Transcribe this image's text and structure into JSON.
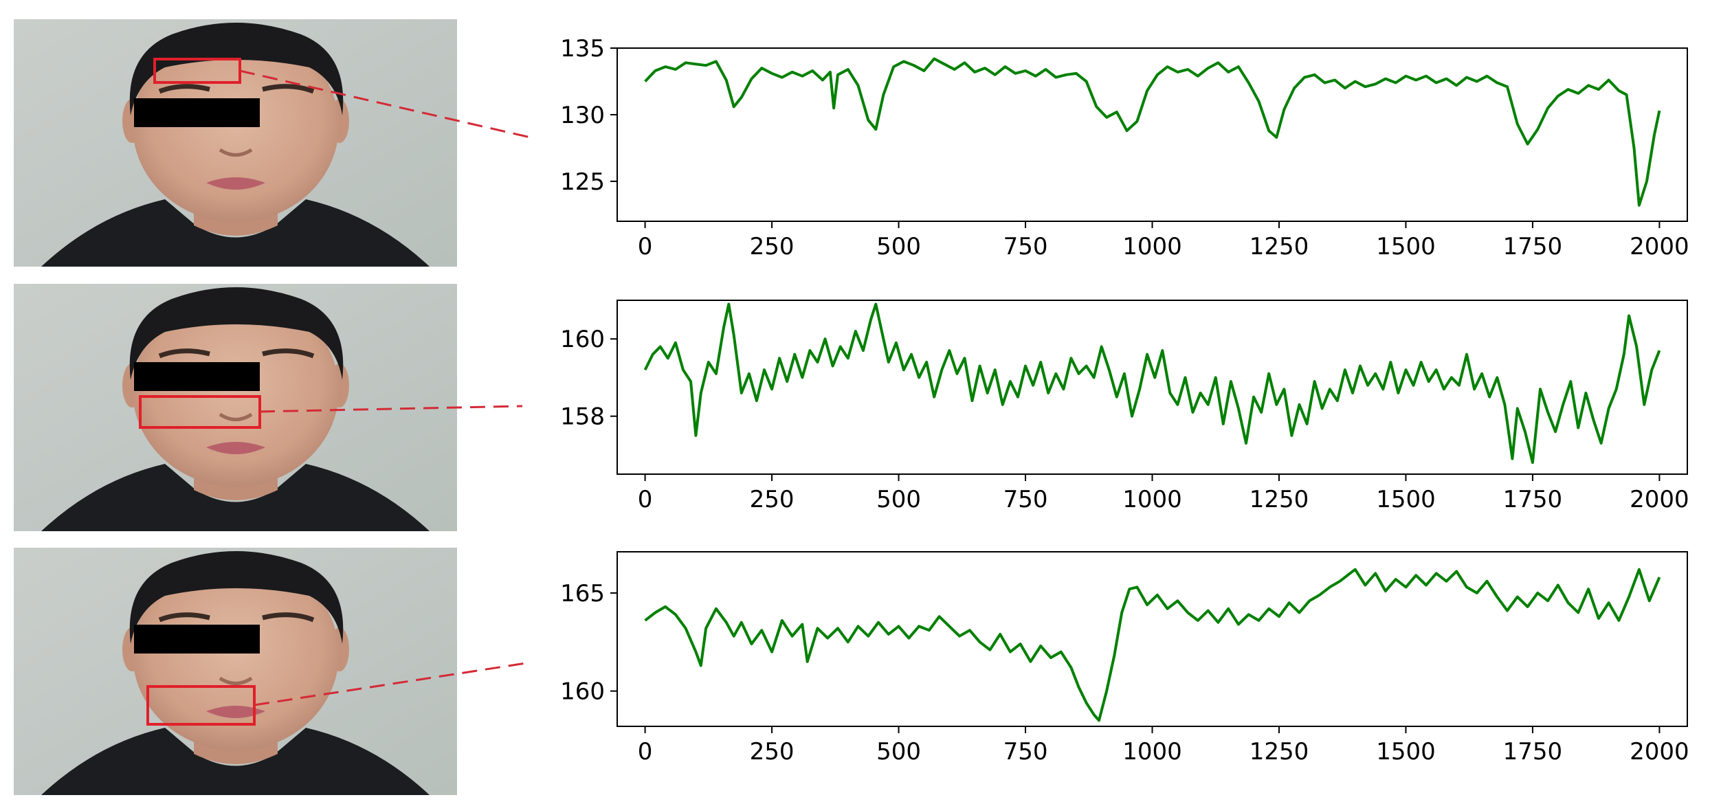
{
  "figure": {
    "panels": [
      {
        "roi": "forehead",
        "x_ticks": [
          "0",
          "250",
          "500",
          "750",
          "1000",
          "1250",
          "1500",
          "1750",
          "2000"
        ],
        "y_ticks": [
          "125",
          "130",
          "135"
        ]
      },
      {
        "roi": "nose-cheeks",
        "x_ticks": [
          "0",
          "250",
          "500",
          "750",
          "1000",
          "1250",
          "1500",
          "1750",
          "2000"
        ],
        "y_ticks": [
          "158",
          "160"
        ]
      },
      {
        "roi": "mouth",
        "x_ticks": [
          "0",
          "250",
          "500",
          "750",
          "1000",
          "1250",
          "1500",
          "1750",
          "2000"
        ],
        "y_ticks": [
          "160",
          "165"
        ]
      }
    ],
    "colors": {
      "line": "#008000",
      "roi_box": "#e0202a",
      "leader": "#d42a36",
      "mask": "#000000",
      "background_photo": "#c6ccc8"
    }
  },
  "chart_data": [
    {
      "type": "line",
      "title": "",
      "xlabel": "",
      "ylabel": "",
      "xlim": [
        -55,
        2055
      ],
      "ylim": [
        122,
        135
      ],
      "x_ticks": [
        0,
        250,
        500,
        750,
        1000,
        1250,
        1500,
        1750,
        2000
      ],
      "y_ticks": [
        125,
        130,
        135
      ],
      "grid": false,
      "series": [
        {
          "x": [
            0,
            20,
            40,
            60,
            80,
            100,
            120,
            140,
            160,
            175,
            190,
            210,
            230,
            250,
            270,
            290,
            310,
            330,
            350,
            365,
            372,
            380,
            400,
            420,
            440,
            455,
            470,
            490,
            510,
            530,
            550,
            570,
            590,
            610,
            630,
            650,
            670,
            690,
            710,
            730,
            750,
            770,
            790,
            810,
            830,
            850,
            870,
            890,
            910,
            930,
            950,
            970,
            990,
            1010,
            1030,
            1050,
            1070,
            1090,
            1110,
            1130,
            1150,
            1170,
            1190,
            1210,
            1230,
            1245,
            1260,
            1280,
            1300,
            1320,
            1340,
            1360,
            1380,
            1400,
            1420,
            1440,
            1460,
            1480,
            1500,
            1520,
            1540,
            1560,
            1580,
            1600,
            1620,
            1640,
            1660,
            1680,
            1700,
            1720,
            1740,
            1760,
            1780,
            1800,
            1820,
            1840,
            1860,
            1880,
            1900,
            1920,
            1935,
            1950,
            1960,
            1975,
            1990,
            2000
          ],
          "values": [
            132.5,
            133.3,
            133.6,
            133.4,
            133.9,
            133.8,
            133.7,
            134.0,
            132.6,
            130.6,
            131.3,
            132.7,
            133.5,
            133.1,
            132.8,
            133.2,
            132.9,
            133.3,
            132.6,
            133.2,
            130.5,
            133.0,
            133.4,
            132.2,
            129.6,
            128.9,
            131.5,
            133.6,
            134.0,
            133.7,
            133.3,
            134.2,
            133.8,
            133.4,
            133.9,
            133.2,
            133.5,
            133.0,
            133.6,
            133.1,
            133.3,
            132.9,
            133.4,
            132.8,
            133.0,
            133.1,
            132.5,
            130.6,
            129.8,
            130.2,
            128.8,
            129.5,
            131.8,
            133.0,
            133.6,
            133.2,
            133.4,
            132.9,
            133.5,
            133.9,
            133.2,
            133.6,
            132.4,
            131.0,
            128.8,
            128.3,
            130.4,
            132.0,
            132.8,
            133.0,
            132.4,
            132.6,
            132.0,
            132.5,
            132.1,
            132.3,
            132.7,
            132.4,
            132.9,
            132.6,
            132.9,
            132.4,
            132.7,
            132.2,
            132.8,
            132.5,
            132.9,
            132.4,
            132.1,
            129.3,
            127.8,
            128.9,
            130.5,
            131.4,
            131.9,
            131.6,
            132.2,
            131.9,
            132.6,
            131.8,
            131.5,
            127.5,
            123.2,
            125.0,
            128.5,
            130.3
          ]
        }
      ]
    },
    {
      "type": "line",
      "title": "",
      "xlabel": "",
      "ylabel": "",
      "xlim": [
        -55,
        2055
      ],
      "ylim": [
        156.5,
        161.0
      ],
      "x_ticks": [
        0,
        250,
        500,
        750,
        1000,
        1250,
        1500,
        1750,
        2000
      ],
      "y_ticks": [
        158,
        160
      ],
      "grid": false,
      "series": [
        {
          "x": [
            0,
            15,
            30,
            45,
            60,
            75,
            90,
            100,
            110,
            125,
            140,
            155,
            165,
            175,
            190,
            205,
            220,
            235,
            250,
            265,
            280,
            295,
            310,
            325,
            340,
            355,
            370,
            385,
            400,
            415,
            430,
            445,
            455,
            465,
            480,
            495,
            510,
            525,
            540,
            555,
            570,
            585,
            600,
            615,
            630,
            645,
            660,
            675,
            690,
            705,
            720,
            735,
            750,
            765,
            780,
            795,
            810,
            825,
            840,
            855,
            870,
            885,
            900,
            915,
            930,
            945,
            960,
            975,
            990,
            1005,
            1020,
            1035,
            1050,
            1065,
            1080,
            1095,
            1110,
            1125,
            1140,
            1155,
            1170,
            1185,
            1200,
            1215,
            1230,
            1245,
            1260,
            1275,
            1290,
            1305,
            1320,
            1335,
            1350,
            1365,
            1380,
            1395,
            1410,
            1425,
            1440,
            1455,
            1470,
            1485,
            1500,
            1515,
            1530,
            1545,
            1560,
            1575,
            1590,
            1605,
            1620,
            1635,
            1650,
            1665,
            1680,
            1695,
            1710,
            1720,
            1735,
            1750,
            1765,
            1780,
            1795,
            1810,
            1825,
            1840,
            1855,
            1870,
            1885,
            1900,
            1915,
            1930,
            1940,
            1955,
            1970,
            1985,
            2000
          ],
          "values": [
            159.2,
            159.6,
            159.8,
            159.5,
            159.9,
            159.2,
            158.9,
            157.5,
            158.6,
            159.4,
            159.1,
            160.3,
            160.9,
            160.1,
            158.6,
            159.1,
            158.4,
            159.2,
            158.7,
            159.5,
            158.9,
            159.6,
            159.0,
            159.7,
            159.4,
            160.0,
            159.3,
            159.8,
            159.5,
            160.2,
            159.7,
            160.5,
            160.9,
            160.3,
            159.4,
            159.9,
            159.2,
            159.6,
            159.0,
            159.4,
            158.5,
            159.2,
            159.7,
            159.1,
            159.5,
            158.4,
            159.3,
            158.6,
            159.2,
            158.3,
            158.9,
            158.5,
            159.3,
            158.8,
            159.4,
            158.6,
            159.1,
            158.7,
            159.5,
            159.1,
            159.3,
            159.0,
            159.8,
            159.2,
            158.5,
            159.1,
            158.0,
            158.7,
            159.6,
            159.0,
            159.7,
            158.6,
            158.3,
            159.0,
            158.1,
            158.6,
            158.3,
            159.0,
            157.8,
            158.9,
            158.2,
            157.3,
            158.5,
            158.1,
            159.1,
            158.3,
            158.7,
            157.5,
            158.3,
            157.8,
            158.9,
            158.2,
            158.7,
            158.4,
            159.2,
            158.6,
            159.3,
            158.8,
            159.1,
            158.7,
            159.4,
            158.6,
            159.2,
            158.8,
            159.4,
            158.9,
            159.2,
            158.7,
            159.0,
            158.8,
            159.6,
            158.7,
            159.1,
            158.5,
            159.0,
            158.3,
            156.9,
            158.2,
            157.6,
            156.8,
            158.7,
            158.1,
            157.6,
            158.3,
            158.9,
            157.7,
            158.6,
            157.9,
            157.3,
            158.2,
            158.7,
            159.6,
            160.6,
            159.8,
            158.3,
            159.2,
            159.7
          ]
        }
      ]
    },
    {
      "type": "line",
      "title": "",
      "xlabel": "",
      "ylabel": "",
      "xlim": [
        -55,
        2055
      ],
      "ylim": [
        158.2,
        167.1
      ],
      "x_ticks": [
        0,
        250,
        500,
        750,
        1000,
        1250,
        1500,
        1750,
        2000
      ],
      "y_ticks": [
        160,
        165
      ],
      "grid": false,
      "series": [
        {
          "x": [
            0,
            20,
            40,
            60,
            80,
            100,
            110,
            120,
            140,
            160,
            175,
            190,
            210,
            230,
            250,
            270,
            290,
            310,
            320,
            340,
            360,
            380,
            400,
            420,
            440,
            460,
            480,
            500,
            520,
            540,
            560,
            580,
            600,
            620,
            640,
            660,
            680,
            700,
            720,
            740,
            760,
            780,
            800,
            820,
            840,
            855,
            870,
            885,
            895,
            910,
            925,
            940,
            955,
            970,
            990,
            1010,
            1030,
            1050,
            1070,
            1090,
            1110,
            1130,
            1150,
            1170,
            1190,
            1210,
            1230,
            1250,
            1270,
            1290,
            1310,
            1330,
            1350,
            1370,
            1385,
            1400,
            1420,
            1440,
            1460,
            1480,
            1500,
            1520,
            1540,
            1560,
            1580,
            1600,
            1620,
            1640,
            1660,
            1680,
            1700,
            1720,
            1740,
            1760,
            1780,
            1800,
            1820,
            1840,
            1860,
            1880,
            1900,
            1920,
            1940,
            1960,
            1980,
            2000
          ],
          "values": [
            163.6,
            164.0,
            164.3,
            163.9,
            163.2,
            162.0,
            161.3,
            163.2,
            164.2,
            163.5,
            162.8,
            163.5,
            162.4,
            163.1,
            162.0,
            163.6,
            162.8,
            163.4,
            161.5,
            163.2,
            162.7,
            163.2,
            162.5,
            163.3,
            162.8,
            163.5,
            162.9,
            163.3,
            162.7,
            163.3,
            163.1,
            163.8,
            163.3,
            162.8,
            163.1,
            162.5,
            162.1,
            162.9,
            162.0,
            162.4,
            161.5,
            162.3,
            161.7,
            162.0,
            161.2,
            160.2,
            159.4,
            158.8,
            158.5,
            160.0,
            161.8,
            164.0,
            165.2,
            165.3,
            164.4,
            164.9,
            164.2,
            164.6,
            164.0,
            163.6,
            164.1,
            163.5,
            164.2,
            163.4,
            163.9,
            163.6,
            164.2,
            163.8,
            164.5,
            164.0,
            164.6,
            164.9,
            165.3,
            165.6,
            165.9,
            166.2,
            165.4,
            166.0,
            165.1,
            165.7,
            165.3,
            165.9,
            165.4,
            166.0,
            165.6,
            166.1,
            165.3,
            165.0,
            165.6,
            164.8,
            164.1,
            164.8,
            164.3,
            165.0,
            164.6,
            165.4,
            164.5,
            164.0,
            165.2,
            163.7,
            164.5,
            163.6,
            164.8,
            166.2,
            164.6,
            165.8
          ]
        }
      ]
    }
  ]
}
